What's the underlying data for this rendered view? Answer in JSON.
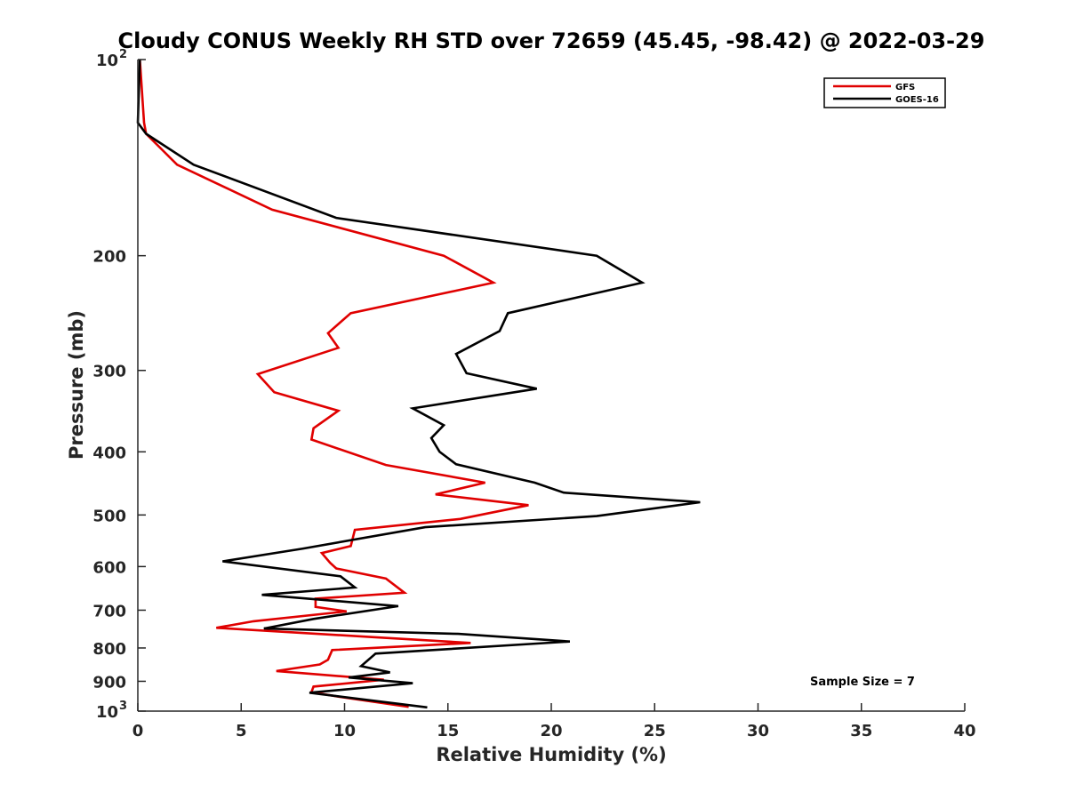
{
  "chart_data": {
    "type": "line",
    "title": "Cloudy CONUS Weekly RH STD over 72659 (45.45, -98.42) @ 2022-03-29",
    "xlabel": "Relative Humidity (%)",
    "ylabel": "Pressure (mb)",
    "xlim": [
      0,
      40
    ],
    "ylim": [
      100,
      1000
    ],
    "yscale": "log",
    "y_reversed": true,
    "x_ticks": [
      "0",
      "5",
      "10",
      "15",
      "20",
      "25",
      "30",
      "35",
      "40"
    ],
    "y_ticks": [
      {
        "value": 100,
        "base": "10",
        "exp": "2",
        "label": ""
      },
      {
        "value": 200,
        "base": "",
        "exp": "",
        "label": "200"
      },
      {
        "value": 300,
        "base": "",
        "exp": "",
        "label": "300"
      },
      {
        "value": 400,
        "base": "",
        "exp": "",
        "label": "400"
      },
      {
        "value": 500,
        "base": "",
        "exp": "",
        "label": "500"
      },
      {
        "value": 600,
        "base": "",
        "exp": "",
        "label": "600"
      },
      {
        "value": 700,
        "base": "",
        "exp": "",
        "label": "700"
      },
      {
        "value": 800,
        "base": "",
        "exp": "",
        "label": "800"
      },
      {
        "value": 900,
        "base": "",
        "exp": "",
        "label": "900"
      },
      {
        "value": 1000,
        "base": "10",
        "exp": "3",
        "label": ""
      }
    ],
    "grid": false,
    "legend_position": "top-right",
    "series": [
      {
        "name": "GFS",
        "color": "#e00000",
        "points": [
          [
            0.1,
            100
          ],
          [
            0.3,
            125
          ],
          [
            0.4,
            130
          ],
          [
            1.9,
            145
          ],
          [
            6.5,
            170
          ],
          [
            14.8,
            200
          ],
          [
            17.2,
            220
          ],
          [
            10.3,
            245
          ],
          [
            9.2,
            263
          ],
          [
            9.7,
            277
          ],
          [
            5.8,
            304
          ],
          [
            6.6,
            324
          ],
          [
            9.7,
            346
          ],
          [
            8.5,
            368
          ],
          [
            8.4,
            383
          ],
          [
            12.0,
            419
          ],
          [
            16.8,
            446
          ],
          [
            14.4,
            465
          ],
          [
            18.9,
            483
          ],
          [
            15.6,
            507
          ],
          [
            10.5,
            527
          ],
          [
            10.3,
            558
          ],
          [
            8.9,
            572
          ],
          [
            9.3,
            592
          ],
          [
            9.6,
            604
          ],
          [
            12.0,
            626
          ],
          [
            12.9,
            658
          ],
          [
            8.6,
            672
          ],
          [
            8.6,
            692
          ],
          [
            10.1,
            703
          ],
          [
            5.6,
            728
          ],
          [
            3.8,
            745
          ],
          [
            11.4,
            770
          ],
          [
            16.1,
            786
          ],
          [
            9.4,
            806
          ],
          [
            9.2,
            834
          ],
          [
            8.8,
            848
          ],
          [
            6.7,
            868
          ],
          [
            11.9,
            895
          ],
          [
            8.5,
            917
          ],
          [
            8.4,
            935
          ],
          [
            9.7,
            950
          ],
          [
            13.1,
            985
          ]
        ]
      },
      {
        "name": "GOES-16",
        "color": "#000000",
        "points": [
          [
            0.1,
            100
          ],
          [
            0.0,
            125
          ],
          [
            0.4,
            130
          ],
          [
            2.7,
            145
          ],
          [
            9.6,
            175
          ],
          [
            22.2,
            200
          ],
          [
            24.4,
            220
          ],
          [
            17.9,
            245
          ],
          [
            17.5,
            261
          ],
          [
            15.4,
            283
          ],
          [
            15.9,
            303
          ],
          [
            19.3,
            320
          ],
          [
            13.3,
            343
          ],
          [
            14.8,
            364
          ],
          [
            14.2,
            381
          ],
          [
            14.6,
            400
          ],
          [
            15.4,
            418
          ],
          [
            19.2,
            446
          ],
          [
            20.6,
            462
          ],
          [
            27.2,
            478
          ],
          [
            22.2,
            502
          ],
          [
            13.9,
            522
          ],
          [
            8.0,
            563
          ],
          [
            4.1,
            589
          ],
          [
            9.8,
            621
          ],
          [
            10.5,
            646
          ],
          [
            6.0,
            663
          ],
          [
            12.6,
            690
          ],
          [
            8.5,
            722
          ],
          [
            6.1,
            747
          ],
          [
            15.5,
            761
          ],
          [
            20.9,
            782
          ],
          [
            11.5,
            816
          ],
          [
            10.8,
            853
          ],
          [
            12.2,
            872
          ],
          [
            10.2,
            888
          ],
          [
            13.3,
            906
          ],
          [
            8.3,
            937
          ],
          [
            14.0,
            987
          ]
        ]
      }
    ],
    "annotations": [
      "Sample Size = 7"
    ]
  }
}
